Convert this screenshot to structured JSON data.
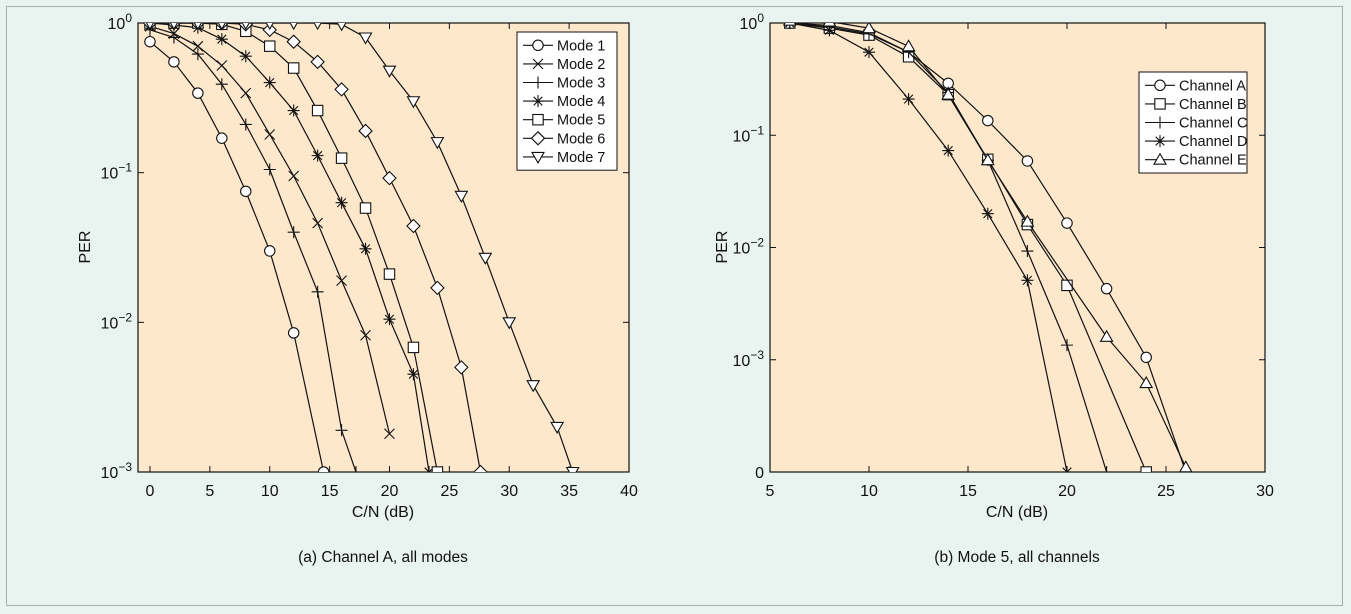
{
  "colors": {
    "page_background": "#e9f3ef",
    "plot_background": "#fde8cc",
    "ink": "#111111"
  },
  "chart_data": [
    {
      "type": "line",
      "caption": "(a) Channel A, all modes",
      "xlabel": "C/N (dB)",
      "ylabel": "PER",
      "xlim": [
        -1,
        40
      ],
      "ylim": [
        0.001,
        1
      ],
      "yscale": "log",
      "xticks": [
        0,
        5,
        10,
        15,
        20,
        25,
        30,
        35,
        40
      ],
      "xtick_labels": [
        "0",
        "5",
        "10",
        "15",
        "20",
        "25",
        "30",
        "35",
        "40"
      ],
      "yticks": [
        1,
        0.1,
        0.01,
        0.001
      ],
      "ytick_labels": [
        {
          "base": "10",
          "exp": "0"
        },
        {
          "base": "10",
          "exp": "−1"
        },
        {
          "base": "10",
          "exp": "−2"
        },
        {
          "base": "10",
          "exp": "−3"
        }
      ],
      "grid": false,
      "legend_position": "top-right",
      "series": [
        {
          "name": "Mode 1",
          "marker": "circle",
          "x": [
            0,
            2,
            4,
            6,
            8,
            10,
            12,
            14.5
          ],
          "y": [
            0.75,
            0.55,
            0.34,
            0.17,
            0.075,
            0.03,
            0.0085,
            0.001
          ]
        },
        {
          "name": "Mode 2",
          "marker": "x",
          "x": [
            0,
            2,
            4,
            6,
            8,
            10,
            12,
            14,
            16,
            18,
            20
          ],
          "y": [
            0.95,
            0.85,
            0.7,
            0.52,
            0.34,
            0.18,
            0.095,
            0.046,
            0.019,
            0.0082,
            0.0018
          ]
        },
        {
          "name": "Mode 3",
          "marker": "plus",
          "x": [
            0,
            2,
            4,
            6,
            8,
            10,
            12,
            14,
            16,
            17.2
          ],
          "y": [
            0.9,
            0.8,
            0.62,
            0.39,
            0.21,
            0.105,
            0.04,
            0.016,
            0.0019,
            0.001
          ]
        },
        {
          "name": "Mode 4",
          "marker": "asterisk",
          "x": [
            0,
            2,
            4,
            6,
            8,
            10,
            12,
            14,
            16,
            18,
            20,
            22,
            23.3
          ],
          "y": [
            1.0,
            0.97,
            0.93,
            0.78,
            0.6,
            0.4,
            0.26,
            0.13,
            0.063,
            0.031,
            0.0105,
            0.0045,
            0.001
          ]
        },
        {
          "name": "Mode 5",
          "marker": "square",
          "x": [
            0,
            2,
            4,
            6,
            8,
            10,
            12,
            14,
            16,
            18,
            20,
            22,
            24
          ],
          "y": [
            1.0,
            1.0,
            1.0,
            0.98,
            0.88,
            0.7,
            0.5,
            0.26,
            0.125,
            0.058,
            0.021,
            0.0068,
            0.001
          ]
        },
        {
          "name": "Mode 6",
          "marker": "diamond",
          "x": [
            0,
            2,
            4,
            6,
            8,
            10,
            12,
            14,
            16,
            18,
            20,
            22,
            24,
            26,
            27.6
          ],
          "y": [
            1.0,
            1.0,
            1.0,
            1.0,
            0.98,
            0.9,
            0.75,
            0.55,
            0.36,
            0.19,
            0.092,
            0.044,
            0.017,
            0.005,
            0.001
          ]
        },
        {
          "name": "Mode 7",
          "marker": "triangle-down",
          "x": [
            0,
            2,
            4,
            6,
            8,
            10,
            12,
            14,
            16,
            18,
            20,
            22,
            24,
            26,
            28,
            30,
            32,
            34,
            35.3
          ],
          "y": [
            1.0,
            1.0,
            1.0,
            1.0,
            1.0,
            1.0,
            1.0,
            1.0,
            0.98,
            0.8,
            0.48,
            0.3,
            0.16,
            0.07,
            0.027,
            0.01,
            0.0038,
            0.002,
            0.001
          ]
        }
      ]
    },
    {
      "type": "line",
      "caption": "(b) Mode 5, all channels",
      "xlabel": "C/N (dB)",
      "ylabel": "PER",
      "xlim": [
        5,
        30
      ],
      "ylim": [
        0.0001,
        1
      ],
      "yscale": "log",
      "bottom_value_label": "0",
      "xticks": [
        5,
        10,
        15,
        20,
        25,
        30
      ],
      "xtick_labels": [
        "5",
        "10",
        "15",
        "20",
        "25",
        "30"
      ],
      "yticks": [
        1,
        0.1,
        0.01,
        0.001,
        0.0001
      ],
      "ytick_labels": [
        {
          "base": "10",
          "exp": "0"
        },
        {
          "base": "10",
          "exp": "−1"
        },
        {
          "base": "10",
          "exp": "−2"
        },
        {
          "base": "10",
          "exp": "−3"
        },
        {
          "base": "0",
          "exp": ""
        }
      ],
      "grid": false,
      "legend_position": "top-right",
      "series": [
        {
          "name": "Channel A",
          "marker": "circle",
          "x": [
            6,
            8,
            10,
            12,
            14,
            16,
            18,
            20,
            22,
            24,
            26
          ],
          "y": [
            1.0,
            0.95,
            0.82,
            0.55,
            0.29,
            0.135,
            0.059,
            0.0165,
            0.0043,
            0.00105,
            0.0001
          ]
        },
        {
          "name": "Channel B",
          "marker": "square",
          "x": [
            6,
            8,
            10,
            12,
            14,
            16,
            18,
            20,
            24
          ],
          "y": [
            1.0,
            0.9,
            0.78,
            0.5,
            0.23,
            0.061,
            0.016,
            0.0046,
            0.0001
          ]
        },
        {
          "name": "Channel C",
          "marker": "plus",
          "x": [
            6,
            8,
            10,
            12,
            14,
            16,
            18,
            20,
            22
          ],
          "y": [
            1.0,
            0.92,
            0.8,
            0.55,
            0.24,
            0.06,
            0.0093,
            0.00135,
            0.0001
          ]
        },
        {
          "name": "Channel D",
          "marker": "asterisk",
          "x": [
            6,
            8,
            10,
            12,
            14,
            16,
            18,
            20
          ],
          "y": [
            1.0,
            0.86,
            0.55,
            0.21,
            0.073,
            0.02,
            0.0051,
            0.0001
          ]
        },
        {
          "name": "Channel E",
          "marker": "triangle-up",
          "x": [
            6,
            8,
            10,
            12,
            14,
            16,
            18,
            22,
            24,
            26
          ],
          "y": [
            1.05,
            1.03,
            0.9,
            0.62,
            0.23,
            0.06,
            0.017,
            0.0016,
            0.00062,
            0.00011
          ]
        }
      ]
    }
  ]
}
